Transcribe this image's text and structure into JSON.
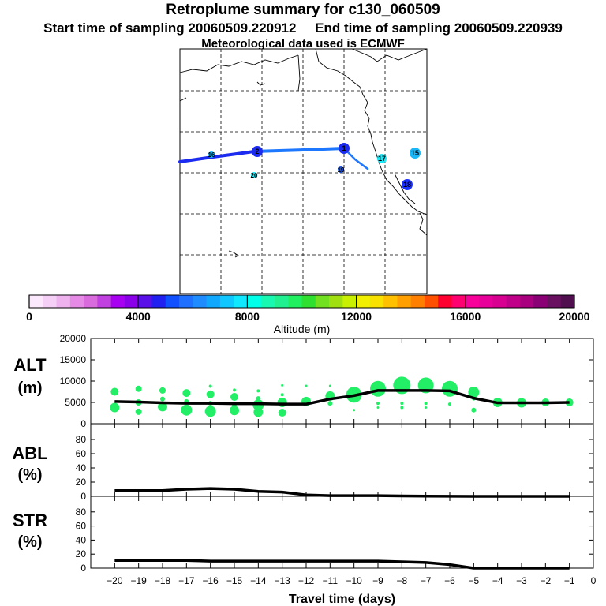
{
  "header": {
    "title": "Retroplume summary for c130_060509",
    "start_label": "Start time of sampling 20060509.220912",
    "end_label": "End time of sampling 20060509.220939",
    "met_label": "Meteorological data used is ECMWF"
  },
  "colorbar": {
    "xlabel": "Altitude (m)",
    "ticks": [
      "0",
      "4000",
      "8000",
      "12000",
      "16000",
      "20000"
    ],
    "colors": [
      "#fce8fc",
      "#f5cff5",
      "#eeb3ee",
      "#e58be5",
      "#d96bdc",
      "#c040e0",
      "#a800f0",
      "#8a00e8",
      "#5a10e8",
      "#2020f0",
      "#1050ff",
      "#2070ff",
      "#1e8cff",
      "#10a8ff",
      "#10c8ff",
      "#10e8ff",
      "#00ffe8",
      "#18f8b0",
      "#20f090",
      "#20f060",
      "#30e030",
      "#70e020",
      "#a0e010",
      "#c8f000",
      "#f0f000",
      "#f8e000",
      "#ffc000",
      "#ffa000",
      "#ff8000",
      "#ff5000",
      "#ff0030",
      "#ff0070",
      "#f8009a",
      "#e8009a",
      "#d80090",
      "#c00088",
      "#a8007f",
      "#8a0075",
      "#6a1060",
      "#501050"
    ]
  },
  "map": {
    "markers": [
      {
        "label": "1",
        "color": "#1b2cf0"
      },
      {
        "label": "2",
        "color": "#1b2cf0"
      },
      {
        "label": "15",
        "color": "#18b8f8"
      },
      {
        "label": "16",
        "color": "#18b8f8"
      },
      {
        "label": "17",
        "color": "#18e8f8"
      },
      {
        "label": "18",
        "color": "#1a30ff"
      },
      {
        "label": "19",
        "color": "#1850e0"
      },
      {
        "label": "20",
        "color": "#18e8f8"
      }
    ]
  },
  "chart_data": [
    {
      "type": "line",
      "panel": "ALT",
      "ylabel": "ALT (m)",
      "x": [
        -20,
        -19,
        -18,
        -17,
        -16,
        -15,
        -14,
        -13,
        -12,
        -11,
        -10,
        -9,
        -8,
        -7,
        -6,
        -5,
        -4,
        -3,
        -2,
        -1
      ],
      "values": [
        5200,
        5100,
        4900,
        4800,
        4800,
        4700,
        4700,
        4600,
        4600,
        5800,
        6600,
        7800,
        7800,
        7800,
        7700,
        6000,
        4900,
        4900,
        4900,
        5000
      ],
      "ylim": [
        0,
        20000
      ],
      "yticks": [
        "20000",
        "15000",
        "10000",
        "5000",
        "0"
      ],
      "dots": [
        {
          "x": -20,
          "y": 7500,
          "s": 5
        },
        {
          "x": -20,
          "y": 3800,
          "s": 6
        },
        {
          "x": -19,
          "y": 8200,
          "s": 4
        },
        {
          "x": -19,
          "y": 5000,
          "s": 4
        },
        {
          "x": -19,
          "y": 2800,
          "s": 4
        },
        {
          "x": -18,
          "y": 7800,
          "s": 4
        },
        {
          "x": -18,
          "y": 5800,
          "s": 3
        },
        {
          "x": -18,
          "y": 4000,
          "s": 6
        },
        {
          "x": -17,
          "y": 7200,
          "s": 5
        },
        {
          "x": -17,
          "y": 5200,
          "s": 3
        },
        {
          "x": -17,
          "y": 3200,
          "s": 7
        },
        {
          "x": -16,
          "y": 8800,
          "s": 2
        },
        {
          "x": -16,
          "y": 6900,
          "s": 5
        },
        {
          "x": -16,
          "y": 4800,
          "s": 3
        },
        {
          "x": -16,
          "y": 2900,
          "s": 7
        },
        {
          "x": -15,
          "y": 7900,
          "s": 2
        },
        {
          "x": -15,
          "y": 6300,
          "s": 5
        },
        {
          "x": -15,
          "y": 4500,
          "s": 3
        },
        {
          "x": -15,
          "y": 3100,
          "s": 6
        },
        {
          "x": -14,
          "y": 7700,
          "s": 2
        },
        {
          "x": -14,
          "y": 5900,
          "s": 3
        },
        {
          "x": -14,
          "y": 4400,
          "s": 7
        },
        {
          "x": -14,
          "y": 2700,
          "s": 6
        },
        {
          "x": -13,
          "y": 9000,
          "s": 1.5
        },
        {
          "x": -13,
          "y": 6800,
          "s": 2
        },
        {
          "x": -13,
          "y": 5000,
          "s": 6
        },
        {
          "x": -13,
          "y": 2600,
          "s": 5
        },
        {
          "x": -12,
          "y": 8900,
          "s": 1.5
        },
        {
          "x": -12,
          "y": 5200,
          "s": 6
        },
        {
          "x": -11,
          "y": 8900,
          "s": 1.5
        },
        {
          "x": -11,
          "y": 6500,
          "s": 6
        },
        {
          "x": -11,
          "y": 4800,
          "s": 3
        },
        {
          "x": -10,
          "y": 7800,
          "s": 4
        },
        {
          "x": -10,
          "y": 6800,
          "s": 10
        },
        {
          "x": -10,
          "y": 3200,
          "s": 1.5
        },
        {
          "x": -9,
          "y": 8200,
          "s": 10
        },
        {
          "x": -9,
          "y": 4800,
          "s": 2
        },
        {
          "x": -9,
          "y": 3800,
          "s": 1.5
        },
        {
          "x": -8,
          "y": 9000,
          "s": 11
        },
        {
          "x": -8,
          "y": 4800,
          "s": 2
        },
        {
          "x": -8,
          "y": 3800,
          "s": 2
        },
        {
          "x": -7,
          "y": 9000,
          "s": 10
        },
        {
          "x": -7,
          "y": 4800,
          "s": 2
        },
        {
          "x": -7,
          "y": 3800,
          "s": 1.5
        },
        {
          "x": -6,
          "y": 8200,
          "s": 10
        },
        {
          "x": -6,
          "y": 4600,
          "s": 2
        },
        {
          "x": -5,
          "y": 7400,
          "s": 7
        },
        {
          "x": -5,
          "y": 5800,
          "s": 2
        },
        {
          "x": -5,
          "y": 3200,
          "s": 3
        },
        {
          "x": -4,
          "y": 5000,
          "s": 6
        },
        {
          "x": -3,
          "y": 4900,
          "s": 6
        },
        {
          "x": -2,
          "y": 5000,
          "s": 5
        },
        {
          "x": -1,
          "y": 5000,
          "s": 5
        }
      ]
    },
    {
      "type": "line",
      "panel": "ABL",
      "ylabel": "ABL (%)",
      "x": [
        -20,
        -19,
        -18,
        -17,
        -16,
        -15,
        -14,
        -13,
        -12,
        -11,
        -10,
        -9,
        -8,
        -7,
        -6,
        -5,
        -4,
        -3,
        -2,
        -1
      ],
      "values": [
        8,
        8,
        8,
        10,
        11,
        10,
        7,
        6,
        2,
        1,
        1,
        1,
        0.5,
        0.3,
        0.2,
        0,
        0,
        0,
        0,
        0
      ],
      "ylim": [
        0,
        100
      ],
      "yticks": [
        "80",
        "60",
        "40",
        "20",
        "0"
      ]
    },
    {
      "type": "line",
      "panel": "STR",
      "ylabel": "STR (%)",
      "x": [
        -20,
        -19,
        -18,
        -17,
        -16,
        -15,
        -14,
        -13,
        -12,
        -11,
        -10,
        -9,
        -8,
        -7,
        -6,
        -5,
        -4,
        -3,
        -2,
        -1
      ],
      "values": [
        11,
        11,
        11,
        11,
        10,
        10,
        10,
        10,
        10,
        10,
        10,
        10,
        9,
        8,
        5,
        0,
        0,
        0,
        0,
        0
      ],
      "ylim": [
        0,
        100
      ],
      "yticks": [
        "80",
        "60",
        "40",
        "20",
        "0"
      ],
      "xlabel": "Travel time (days)",
      "xticks": [
        "−20",
        "−19",
        "−18",
        "−17",
        "−16",
        "−15",
        "−14",
        "−13",
        "−12",
        "−11",
        "−10",
        "−9",
        "−8",
        "−7",
        "−6",
        "−5",
        "−4",
        "−3",
        "−2",
        "−1",
        "0"
      ]
    }
  ]
}
